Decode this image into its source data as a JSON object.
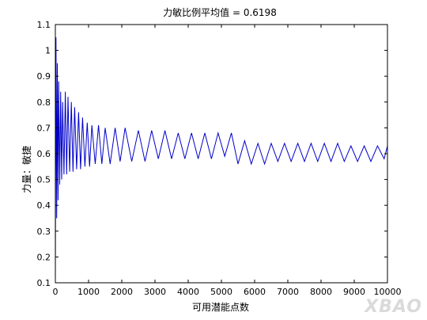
{
  "chart_data": {
    "type": "line",
    "title": "力敏比例平均值 = 0.6198",
    "xlabel": "可用潜能点数",
    "ylabel": "力量：敏捷",
    "xlim": [
      0,
      10000
    ],
    "ylim": [
      0.1,
      1.1
    ],
    "xticks": [
      0,
      1000,
      2000,
      3000,
      4000,
      5000,
      6000,
      7000,
      8000,
      9000,
      10000
    ],
    "yticks": [
      0.1,
      0.2,
      0.3,
      0.4,
      0.5,
      0.6,
      0.7,
      0.8,
      0.9,
      1,
      1.1
    ],
    "grid": false,
    "series": [
      {
        "color": "#0000cc",
        "x": [
          0,
          20,
          40,
          60,
          80,
          100,
          130,
          160,
          190,
          220,
          260,
          300,
          340,
          380,
          430,
          480,
          530,
          580,
          640,
          700,
          760,
          820,
          890,
          960,
          1030,
          1100,
          1200,
          1300,
          1400,
          1500,
          1650,
          1800,
          1950,
          2100,
          2300,
          2500,
          2700,
          2900,
          3100,
          3300,
          3500,
          3700,
          3900,
          4100,
          4300,
          4500,
          4700,
          4900,
          5100,
          5300,
          5500,
          5700,
          5900,
          6100,
          6300,
          6500,
          6700,
          6900,
          7100,
          7300,
          7500,
          7700,
          7900,
          8100,
          8300,
          8500,
          8700,
          8900,
          9100,
          9300,
          9500,
          9700,
          9900,
          10000
        ],
        "y": [
          0.12,
          1.05,
          0.35,
          0.95,
          0.42,
          0.88,
          0.48,
          0.84,
          0.5,
          0.8,
          0.52,
          0.84,
          0.52,
          0.82,
          0.53,
          0.8,
          0.53,
          0.78,
          0.54,
          0.76,
          0.54,
          0.74,
          0.55,
          0.72,
          0.55,
          0.71,
          0.56,
          0.71,
          0.56,
          0.7,
          0.56,
          0.7,
          0.57,
          0.7,
          0.57,
          0.69,
          0.57,
          0.69,
          0.58,
          0.69,
          0.58,
          0.68,
          0.58,
          0.68,
          0.58,
          0.68,
          0.58,
          0.68,
          0.59,
          0.68,
          0.56,
          0.65,
          0.56,
          0.64,
          0.56,
          0.64,
          0.57,
          0.64,
          0.57,
          0.64,
          0.57,
          0.64,
          0.57,
          0.64,
          0.57,
          0.64,
          0.57,
          0.63,
          0.57,
          0.63,
          0.57,
          0.63,
          0.58,
          0.63
        ]
      }
    ]
  },
  "watermark": "XBAO"
}
